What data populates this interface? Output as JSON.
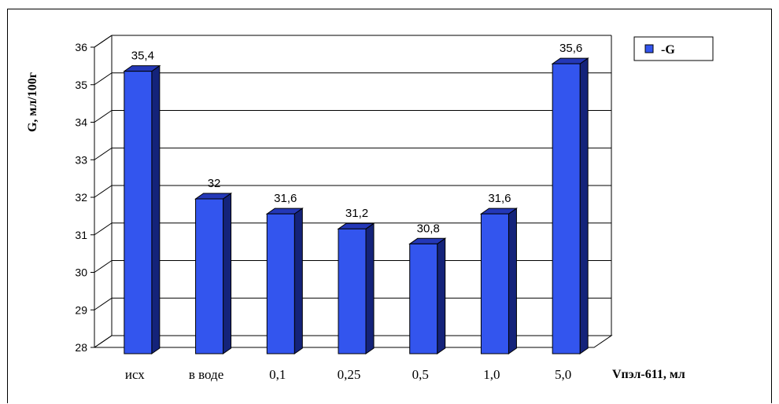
{
  "chart_data": {
    "type": "bar",
    "categories": [
      "исх",
      "в воде",
      "0,1",
      "0,25",
      "0,5",
      "1,0",
      "5,0"
    ],
    "series": [
      {
        "name": "-G",
        "values": [
          35.4,
          32,
          31.6,
          31.2,
          30.8,
          31.6,
          35.6
        ]
      }
    ],
    "data_labels": [
      "35,4",
      "32",
      "31,6",
      "31,2",
      "30,8",
      "31,6",
      "35,6"
    ],
    "y_ticks": [
      "28",
      "29",
      "30",
      "31",
      "32",
      "33",
      "34",
      "35",
      "36"
    ],
    "ylim": [
      28,
      36
    ],
    "ylabel": "G, мл/100г",
    "xlabel": "Vпэл-611, мл",
    "grid": true,
    "legend_position": "top-right",
    "colors": {
      "bar_front": "#3355ee",
      "bar_side": "#14237a",
      "bar_top": "#2438b8",
      "grid": "#000000"
    }
  }
}
